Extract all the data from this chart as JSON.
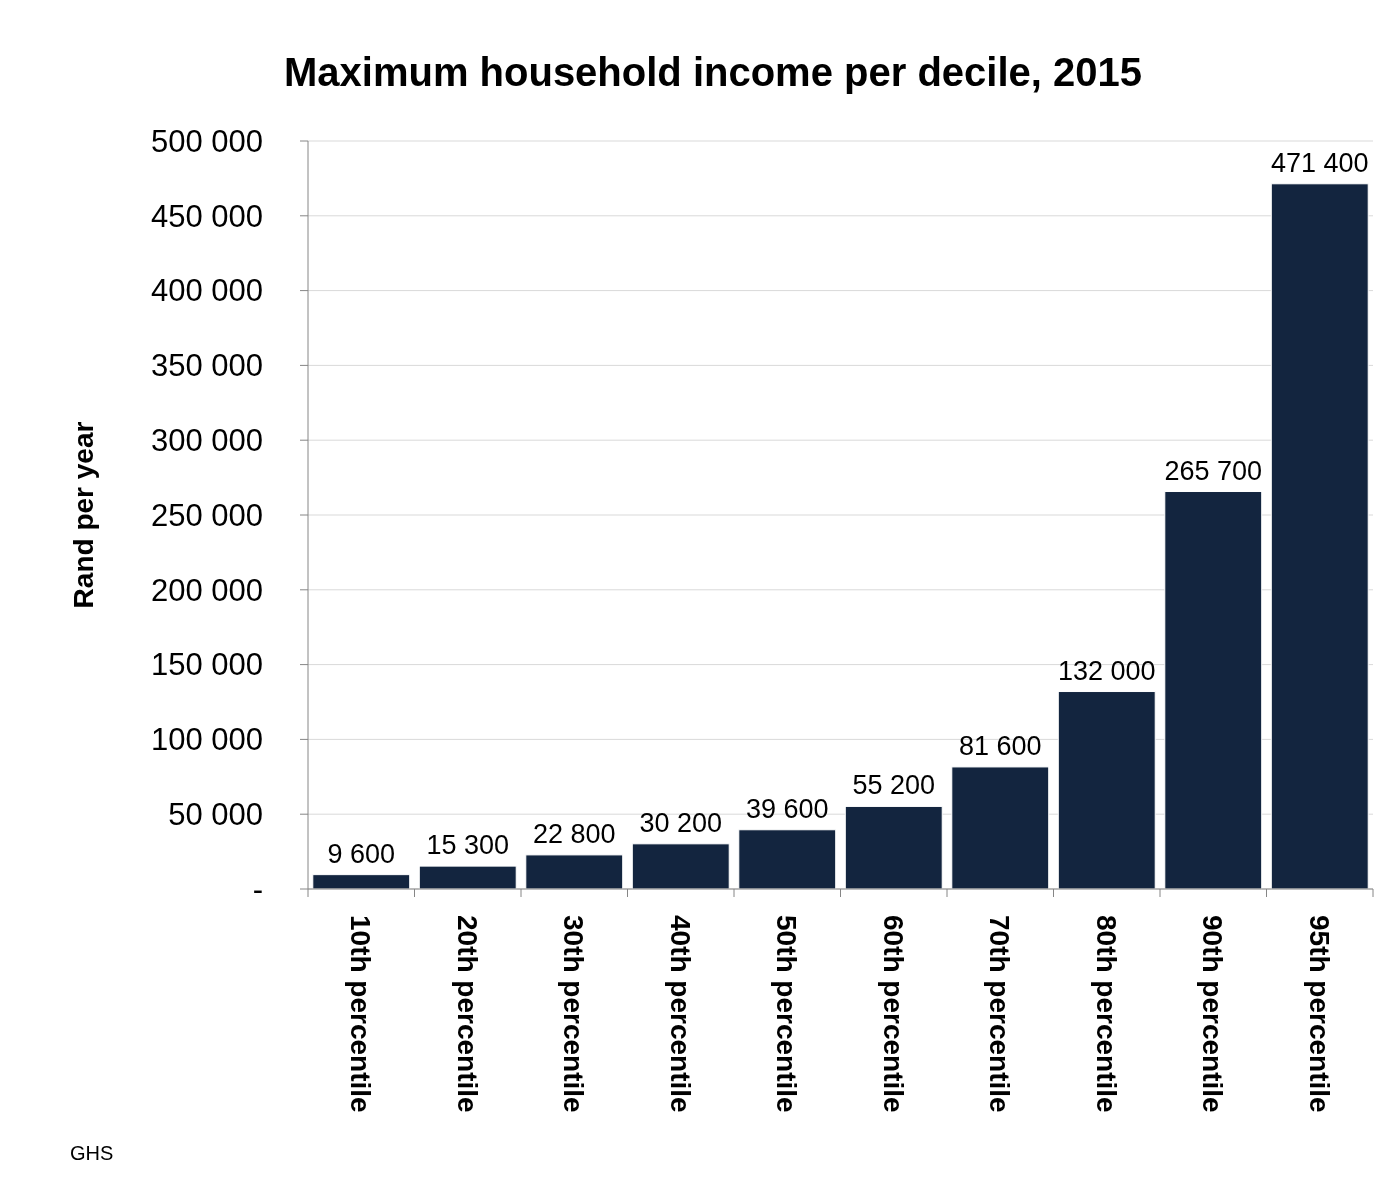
{
  "chart_data": {
    "type": "bar",
    "title": "Maximum household income per decile, 2015",
    "ylabel": "Rand per year",
    "categories": [
      "10th percentile",
      "20th percentile",
      "30th percentile",
      "40th percentile",
      "50th percentile",
      "60th percentile",
      "70th percentile",
      "80th percentile",
      "90th percentile",
      "95th percentile"
    ],
    "values": [
      9600,
      15300,
      22800,
      30200,
      39600,
      55200,
      81600,
      132000,
      265700,
      471400
    ],
    "value_labels": [
      "9 600",
      "15 300",
      "22 800",
      "30 200",
      "39 600",
      "55 200",
      "81 600",
      "132 000",
      "265 700",
      "471 400"
    ],
    "color": "#13253f",
    "ylim": [
      0,
      500000
    ],
    "yticks": [
      {
        "value": 0,
        "label": "-"
      },
      {
        "value": 50000,
        "label": "50 000"
      },
      {
        "value": 100000,
        "label": "100 000"
      },
      {
        "value": 150000,
        "label": "150 000"
      },
      {
        "value": 200000,
        "label": "200 000"
      },
      {
        "value": 250000,
        "label": "250 000"
      },
      {
        "value": 300000,
        "label": "300 000"
      },
      {
        "value": 350000,
        "label": "350 000"
      },
      {
        "value": 400000,
        "label": "400 000"
      },
      {
        "value": 450000,
        "label": "450 000"
      },
      {
        "value": 500000,
        "label": "500 000"
      }
    ],
    "grid": "y",
    "annotations": [
      "GHS"
    ]
  }
}
